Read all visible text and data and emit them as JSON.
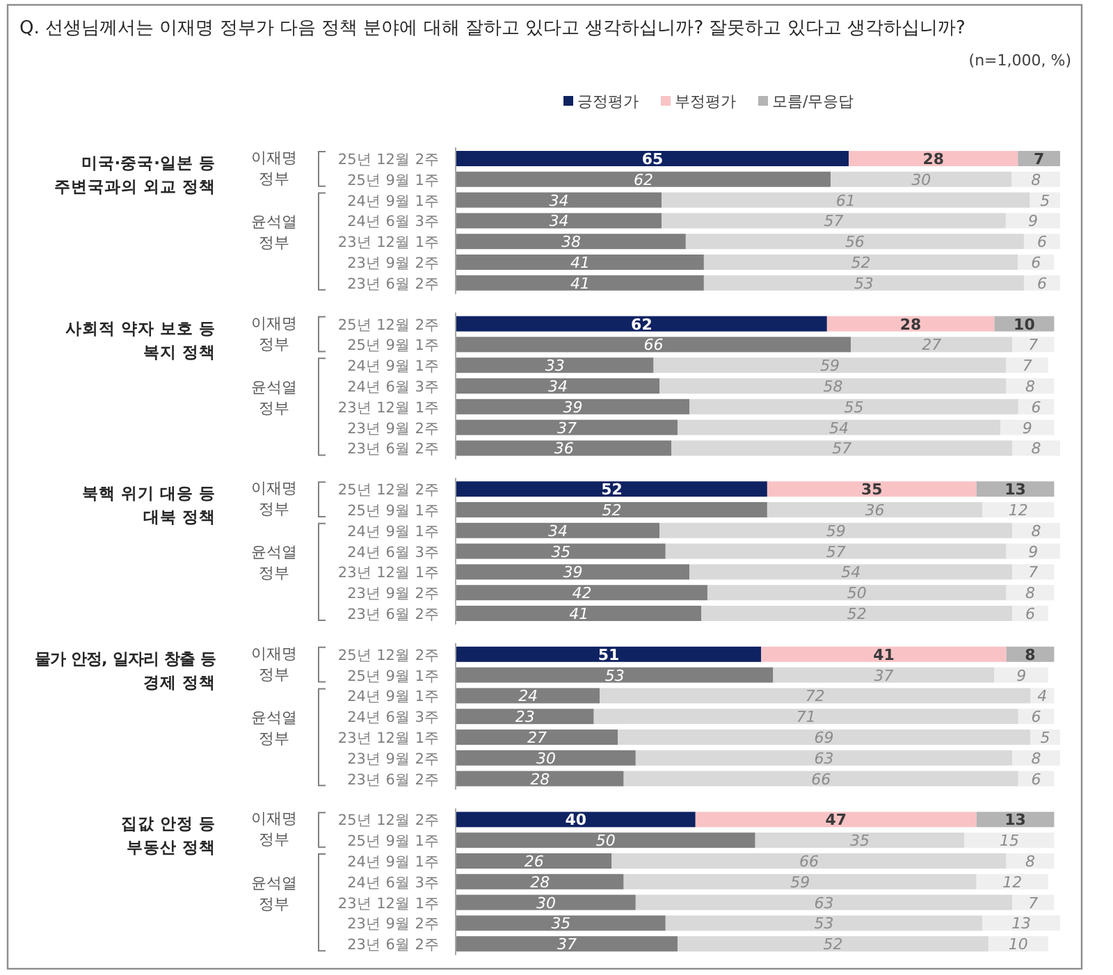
{
  "chart_data": [
    {
      "type": "bar",
      "orientation": "horizontal",
      "stacked": true,
      "title": "Q. 선생님께서는 이재명 정부가 다음 정책 분야에 대해 잘하고 있다고 생각하십니까? 잘못하고 있다고 생각하십니까?",
      "subtitle": "(n=1,000, %)",
      "ylabel": "미국·중국·일본 등\n주변국과의 외교 정책",
      "annotations": [
        "이재명\n정부",
        "윤석열\n정부"
      ],
      "categories": [
        "25년 12월 2주",
        "25년 9월 1주",
        "24년 9월 1주",
        "24년 6월 3주",
        "23년 12월 1주",
        "23년 9월 2주",
        "23년 6월 2주"
      ],
      "series": [
        {
          "name": "긍정평가",
          "color": "#0f2262",
          "colors": [
            "#0f2262",
            "#7f7f7f",
            "#7f7f7f",
            "#7f7f7f",
            "#7f7f7f",
            "#7f7f7f",
            "#7f7f7f"
          ],
          "values": [
            65,
            62,
            34,
            34,
            38,
            41,
            41
          ]
        },
        {
          "name": "부정평가",
          "color": "#f9c3c6",
          "colors": [
            "#f9c3c6",
            "#d9d9d9",
            "#d9d9d9",
            "#d9d9d9",
            "#d9d9d9",
            "#d9d9d9",
            "#d9d9d9"
          ],
          "values": [
            28,
            30,
            61,
            57,
            56,
            52,
            53
          ]
        },
        {
          "name": "모름/무응답",
          "color": "#b4b4b4",
          "colors": [
            "#b4b4b4",
            "#efefef",
            "#efefef",
            "#efefef",
            "#efefef",
            "#efefef",
            "#efefef"
          ],
          "values": [
            7,
            8,
            5,
            9,
            6,
            6,
            6
          ]
        }
      ],
      "tick_labels": "y",
      "data_labels": true,
      "legend": "top"
    },
    {
      "type": "bar",
      "orientation": "horizontal",
      "stacked": true,
      "ylabel": "사회적 약자 보호 등\n복지 정책",
      "annotations": [
        "이재명\n정부",
        "윤석열\n정부"
      ],
      "categories": [
        "25년 12월 2주",
        "25년 9월 1주",
        "24년 9월 1주",
        "24년 6월 3주",
        "23년 12월 1주",
        "23년 9월 2주",
        "23년 6월 2주"
      ],
      "series": [
        {
          "color": "#0f2262",
          "colors": [
            "#0f2262",
            "#7f7f7f",
            "#7f7f7f",
            "#7f7f7f",
            "#7f7f7f",
            "#7f7f7f",
            "#7f7f7f"
          ],
          "values": [
            62,
            66,
            33,
            34,
            39,
            37,
            36
          ]
        },
        {
          "color": "#f9c3c6",
          "colors": [
            "#f9c3c6",
            "#d9d9d9",
            "#d9d9d9",
            "#d9d9d9",
            "#d9d9d9",
            "#d9d9d9",
            "#d9d9d9"
          ],
          "values": [
            28,
            27,
            59,
            58,
            55,
            54,
            57
          ]
        },
        {
          "color": "#b4b4b4",
          "colors": [
            "#b4b4b4",
            "#efefef",
            "#efefef",
            "#efefef",
            "#efefef",
            "#efefef",
            "#efefef"
          ],
          "values": [
            10,
            7,
            7,
            8,
            6,
            9,
            8
          ]
        }
      ],
      "tick_labels": "y",
      "data_labels": true
    },
    {
      "type": "bar",
      "orientation": "horizontal",
      "stacked": true,
      "ylabel": "북핵 위기 대응 등\n대북 정책",
      "annotations": [
        "이재명\n정부",
        "윤석열\n정부"
      ],
      "categories": [
        "25년 12월 2주",
        "25년 9월 1주",
        "24년 9월 1주",
        "24년 6월 3주",
        "23년 12월 1주",
        "23년 9월 2주",
        "23년 6월 2주"
      ],
      "series": [
        {
          "color": "#0f2262",
          "colors": [
            "#0f2262",
            "#7f7f7f",
            "#7f7f7f",
            "#7f7f7f",
            "#7f7f7f",
            "#7f7f7f",
            "#7f7f7f"
          ],
          "values": [
            52,
            52,
            34,
            35,
            39,
            42,
            41
          ]
        },
        {
          "color": "#f9c3c6",
          "colors": [
            "#f9c3c6",
            "#d9d9d9",
            "#d9d9d9",
            "#d9d9d9",
            "#d9d9d9",
            "#d9d9d9",
            "#d9d9d9"
          ],
          "values": [
            35,
            36,
            59,
            57,
            54,
            50,
            52
          ]
        },
        {
          "color": "#b4b4b4",
          "colors": [
            "#b4b4b4",
            "#efefef",
            "#efefef",
            "#efefef",
            "#efefef",
            "#efefef",
            "#efefef"
          ],
          "values": [
            13,
            12,
            8,
            9,
            7,
            8,
            6
          ]
        }
      ],
      "tick_labels": "y",
      "data_labels": true
    },
    {
      "type": "bar",
      "orientation": "horizontal",
      "stacked": true,
      "ylabel": "물가 안정, 일자리 창출 등\n경제 정책",
      "annotations": [
        "이재명\n정부",
        "윤석열\n정부"
      ],
      "categories": [
        "25년 12월 2주",
        "25년 9월 1주",
        "24년 9월 1주",
        "24년 6월 3주",
        "23년 12월 1주",
        "23년 9월 2주",
        "23년 6월 2주"
      ],
      "series": [
        {
          "color": "#0f2262",
          "colors": [
            "#0f2262",
            "#7f7f7f",
            "#7f7f7f",
            "#7f7f7f",
            "#7f7f7f",
            "#7f7f7f",
            "#7f7f7f"
          ],
          "values": [
            51,
            53,
            24,
            23,
            27,
            30,
            28
          ]
        },
        {
          "color": "#f9c3c6",
          "colors": [
            "#f9c3c6",
            "#d9d9d9",
            "#d9d9d9",
            "#d9d9d9",
            "#d9d9d9",
            "#d9d9d9",
            "#d9d9d9"
          ],
          "values": [
            41,
            37,
            72,
            71,
            69,
            63,
            66
          ]
        },
        {
          "color": "#b4b4b4",
          "colors": [
            "#b4b4b4",
            "#efefef",
            "#efefef",
            "#efefef",
            "#efefef",
            "#efefef",
            "#efefef"
          ],
          "values": [
            8,
            9,
            4,
            6,
            5,
            8,
            6
          ]
        }
      ],
      "tick_labels": "y",
      "data_labels": true
    },
    {
      "type": "bar",
      "orientation": "horizontal",
      "stacked": true,
      "ylabel": "집값 안정 등\n부동산 정책",
      "annotations": [
        "이재명\n정부",
        "윤석열\n정부"
      ],
      "categories": [
        "25년 12월 2주",
        "25년 9월 1주",
        "24년 9월 1주",
        "24년 6월 3주",
        "23년 12월 1주",
        "23년 9월 2주",
        "23년 6월 2주"
      ],
      "series": [
        {
          "color": "#0f2262",
          "colors": [
            "#0f2262",
            "#7f7f7f",
            "#7f7f7f",
            "#7f7f7f",
            "#7f7f7f",
            "#7f7f7f",
            "#7f7f7f"
          ],
          "values": [
            40,
            50,
            26,
            28,
            30,
            35,
            37
          ]
        },
        {
          "color": "#f9c3c6",
          "colors": [
            "#f9c3c6",
            "#d9d9d9",
            "#d9d9d9",
            "#d9d9d9",
            "#d9d9d9",
            "#d9d9d9",
            "#d9d9d9"
          ],
          "values": [
            47,
            35,
            66,
            59,
            63,
            53,
            52
          ]
        },
        {
          "color": "#b4b4b4",
          "colors": [
            "#b4b4b4",
            "#efefef",
            "#efefef",
            "#efefef",
            "#efefef",
            "#efefef",
            "#efefef"
          ],
          "values": [
            13,
            15,
            8,
            12,
            7,
            13,
            10
          ]
        }
      ],
      "tick_labels": "y",
      "data_labels": true
    }
  ]
}
